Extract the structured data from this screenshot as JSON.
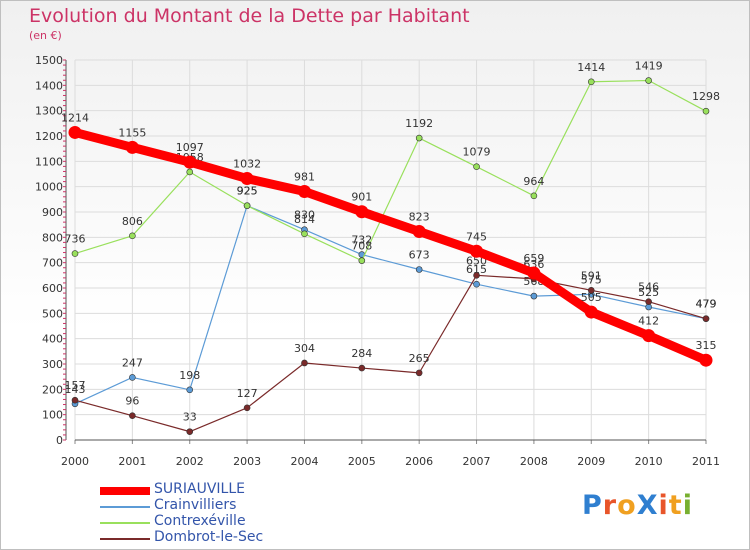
{
  "chart_data": {
    "type": "line",
    "title": "Evolution du Montant de la Dette par Habitant",
    "subtitle": "(en €)",
    "x": [
      "2000",
      "2001",
      "2002",
      "2003",
      "2004",
      "2005",
      "2006",
      "2007",
      "2008",
      "2009",
      "2010",
      "2011"
    ],
    "ylim": [
      0,
      1500
    ],
    "yticks": [
      0,
      100,
      200,
      300,
      400,
      500,
      600,
      700,
      800,
      900,
      1000,
      1100,
      1200,
      1300,
      1400,
      1500
    ],
    "grid": true,
    "legend_position": "bottom-left",
    "series": [
      {
        "name": "SURIAUVILLE",
        "color": "#ff0000",
        "values": [
          1214,
          1155,
          1097,
          1032,
          981,
          901,
          823,
          745,
          659,
          505,
          412,
          315
        ]
      },
      {
        "name": "Crainvilliers",
        "color": "#5c9bd6",
        "values": [
          143,
          247,
          198,
          925,
          830,
          732,
          673,
          615,
          568,
          575,
          525,
          479
        ]
      },
      {
        "name": "Contrexéville",
        "color": "#99e05c",
        "values": [
          736,
          806,
          1058,
          925,
          814,
          708,
          1192,
          1079,
          964,
          1414,
          1419,
          1298
        ]
      },
      {
        "name": "Dombrot-le-Sec",
        "color": "#7a2a2a",
        "values": [
          157,
          96,
          33,
          127,
          304,
          284,
          265,
          650,
          636,
          591,
          546,
          479
        ]
      }
    ]
  },
  "logo": {
    "text": "ProXiti"
  }
}
